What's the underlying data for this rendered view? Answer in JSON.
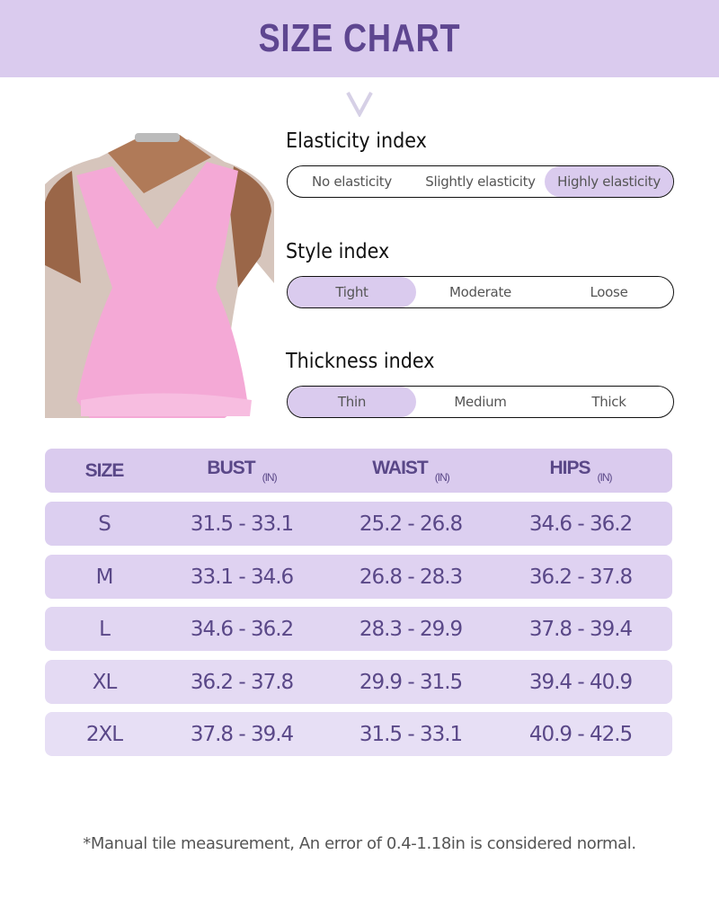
{
  "title": "SIZE CHART",
  "elasticity": {
    "label": "Elasticity index",
    "options": [
      "No elasticity",
      "Slightly elasticity",
      "Highly elasticity"
    ],
    "selected": 2
  },
  "style": {
    "label": "Style index",
    "options": [
      "Tight",
      "Moderate",
      "Loose"
    ],
    "selected": 0
  },
  "thickness": {
    "label": "Thickness index",
    "options": [
      "Thin",
      "Medium",
      "Thick"
    ],
    "selected": 0
  },
  "table": {
    "headers": [
      {
        "name": "SIZE",
        "unit": ""
      },
      {
        "name": "BUST",
        "unit": "(IN)"
      },
      {
        "name": "WAIST",
        "unit": "(IN)"
      },
      {
        "name": "HIPS",
        "unit": "(IN)"
      }
    ],
    "rows": [
      [
        "S",
        "31.5 - 33.1",
        "25.2 - 26.8",
        "34.6 - 36.2"
      ],
      [
        "M",
        "33.1 - 34.6",
        "26.8 - 28.3",
        "36.2 - 37.8"
      ],
      [
        "L",
        "34.6 - 36.2",
        "28.3 - 29.9",
        "37.8 - 39.4"
      ],
      [
        "XL",
        "36.2 - 37.8",
        "29.9 - 31.5",
        "39.4 - 40.9"
      ],
      [
        "2XL",
        "37.8 - 39.4",
        "31.5 - 33.1",
        "40.9 - 42.5"
      ]
    ]
  },
  "note": "*Manual tile measurement, An error of 0.4-1.18in is considered normal.",
  "colors": {
    "accent": "#5e4690",
    "banner": "#dacbee",
    "selected": "#dacbee"
  }
}
